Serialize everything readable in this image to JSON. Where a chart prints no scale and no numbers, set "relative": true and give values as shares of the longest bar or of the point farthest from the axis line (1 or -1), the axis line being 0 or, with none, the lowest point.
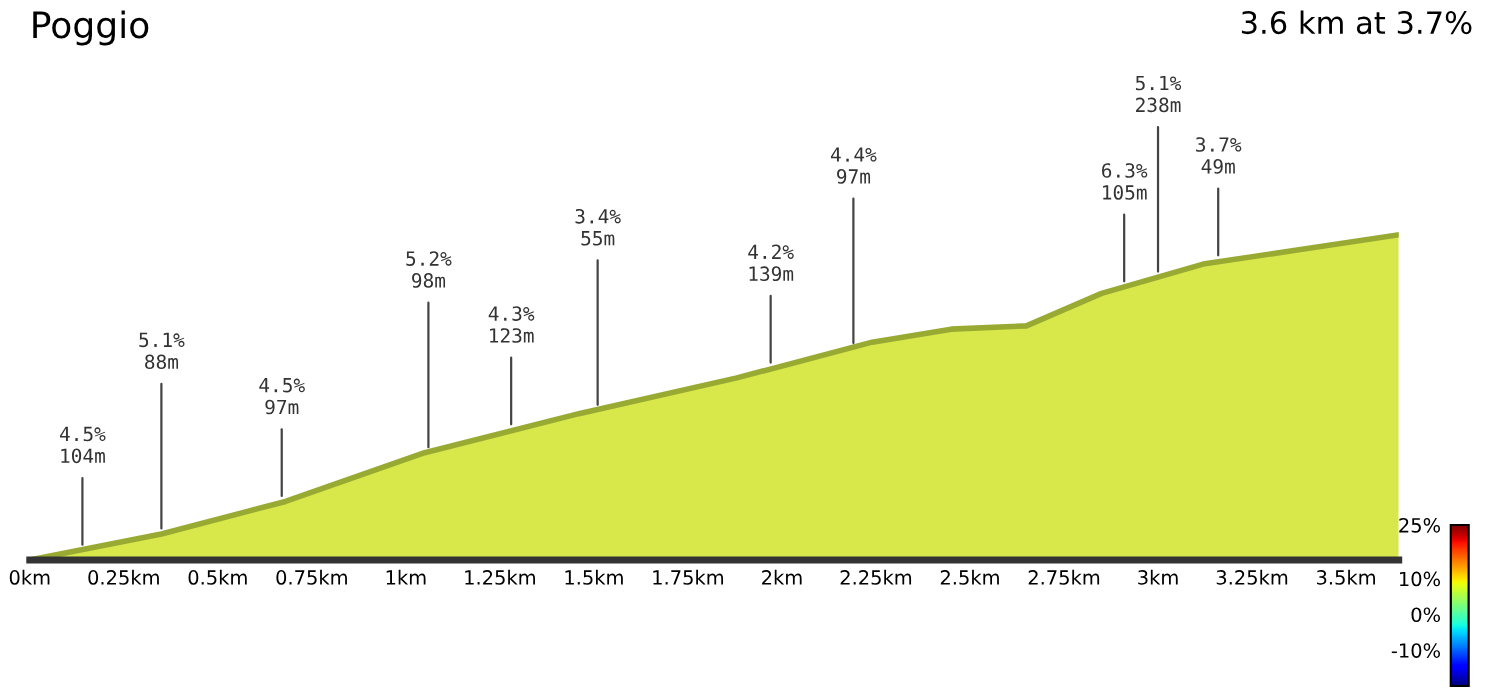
{
  "chart_data": {
    "type": "area",
    "title": "Poggio",
    "subtitle": "3.6 km at 3.7%",
    "relative": true,
    "x": [
      0,
      0.35,
      0.68,
      1.05,
      1.46,
      1.88,
      2.24,
      2.45,
      2.65,
      2.85,
      3.12,
      3.64
    ],
    "values": [
      0,
      0.08,
      0.18,
      0.33,
      0.45,
      0.56,
      0.67,
      0.71,
      0.72,
      0.82,
      0.91,
      1.0
    ],
    "color": "#d8e84a",
    "xlim": [
      0,
      3.64
    ],
    "xticks": [
      {
        "value": 0,
        "label": "0km"
      },
      {
        "value": 0.25,
        "label": "0.25km"
      },
      {
        "value": 0.5,
        "label": "0.5km"
      },
      {
        "value": 0.75,
        "label": "0.75km"
      },
      {
        "value": 1,
        "label": "1km"
      },
      {
        "value": 1.25,
        "label": "1.25km"
      },
      {
        "value": 1.5,
        "label": "1.5km"
      },
      {
        "value": 1.75,
        "label": "1.75km"
      },
      {
        "value": 2,
        "label": "2km"
      },
      {
        "value": 2.25,
        "label": "2.25km"
      },
      {
        "value": 2.5,
        "label": "2.5km"
      },
      {
        "value": 2.75,
        "label": "2.75km"
      },
      {
        "value": 3,
        "label": "3km"
      },
      {
        "value": 3.25,
        "label": "3.25km"
      },
      {
        "value": 3.5,
        "label": "3.5km"
      }
    ],
    "clim": [
      -20,
      25
    ],
    "cticks": [
      {
        "value": 25,
        "label": "25%"
      },
      {
        "value": 10,
        "label": "10%"
      },
      {
        "value": 0,
        "label": "0%"
      },
      {
        "value": -10,
        "label": "-10%"
      }
    ],
    "annotations": [
      {
        "text": "4.5%\n104m",
        "x": 0.14,
        "y": 0.03
      },
      {
        "text": "5.1%\n88m",
        "x": 0.35,
        "y": 0.08
      },
      {
        "text": "4.5%\n97m",
        "x": 0.67,
        "y": 0.18
      },
      {
        "text": "5.2%\n98m",
        "x": 1.06,
        "y": 0.33
      },
      {
        "text": "4.3%\n123m",
        "x": 1.28,
        "y": 0.4
      },
      {
        "text": "3.4%\n55m",
        "x": 1.51,
        "y": 0.46
      },
      {
        "text": "4.2%\n139m",
        "x": 1.97,
        "y": 0.59
      },
      {
        "text": "4.4%\n97m",
        "x": 2.19,
        "y": 0.65
      },
      {
        "text": "6.3%\n105m",
        "x": 2.91,
        "y": 0.84
      },
      {
        "text": "5.1%\n238m",
        "x": 3.0,
        "y": 0.87
      },
      {
        "text": "3.7%\n49m",
        "x": 3.16,
        "y": 0.92
      }
    ],
    "grid": false
  }
}
